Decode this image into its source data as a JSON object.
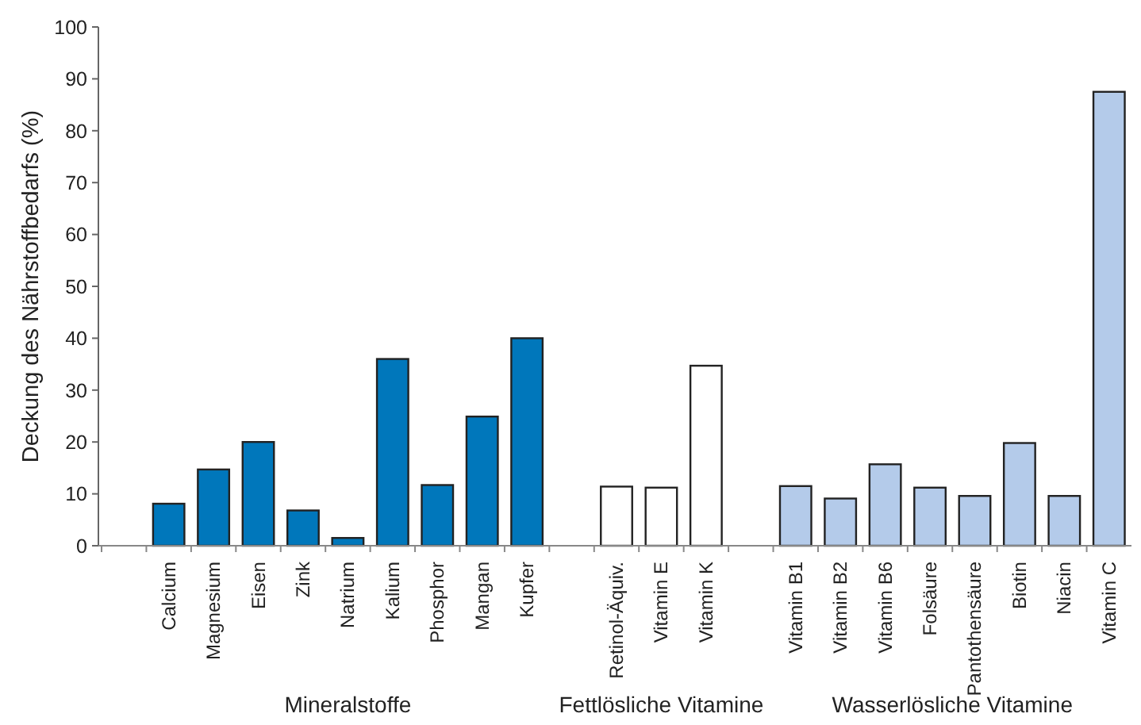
{
  "chart_data": {
    "type": "bar",
    "ylabel": "Deckung des Nährstoffbedarfs (%)",
    "categories": [
      null,
      "Calcium",
      "Magnesium",
      "Eisen",
      "Zink",
      "Natrium",
      "Kalium",
      "Phosphor",
      "Mangan",
      "Kupfer",
      null,
      "Retinol-Äquiv.",
      "Vitamin E",
      "Vitamin K",
      null,
      "Vitamin B1",
      "Vitamin B2",
      "Vitamin B6",
      "Folsäure",
      "Pantothensäure",
      "Biotin",
      "Niacin",
      "Vitamin C"
    ],
    "values": [
      null,
      8.1,
      14.7,
      20,
      6.8,
      1.5,
      36,
      11.7,
      24.9,
      40,
      null,
      11.4,
      11.2,
      34.7,
      null,
      11.5,
      9.1,
      15.7,
      11.2,
      9.6,
      19.8,
      9.6,
      87.5
    ],
    "colors": [
      null,
      "#0077bb",
      "#0077bb",
      "#0077bb",
      "#0077bb",
      "#0077bb",
      "#0077bb",
      "#0077bb",
      "#0077bb",
      "#0077bb",
      null,
      "#ffffff",
      "#ffffff",
      "#ffffff",
      null,
      "#b4cbea",
      "#b4cbea",
      "#b4cbea",
      "#b4cbea",
      "#b4cbea",
      "#b4cbea",
      "#b4cbea",
      "#b4cbea"
    ],
    "ylim": [
      0,
      100
    ],
    "yticks": [
      0,
      10,
      20,
      30,
      40,
      50,
      60,
      70,
      80,
      90,
      100
    ],
    "grid": false,
    "annotations": [
      "Mineralstoffe",
      "Fettlösliche Vitamine",
      "Wasserlösliche Vitamine"
    ]
  }
}
